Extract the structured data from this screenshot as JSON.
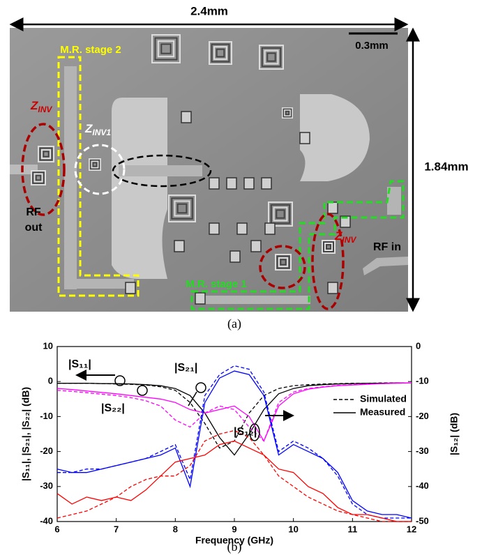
{
  "figure_a": {
    "width_label": "2.4mm",
    "height_label": "1.84mm",
    "scale_label": "0.3mm",
    "stage2": "M.R. stage 2",
    "stage1": "M.R. stage 1",
    "zinv_left": {
      "main": "Z",
      "sub": "INV"
    },
    "zinv1": {
      "main": "Z",
      "sub": "INV1"
    },
    "zinv_right": {
      "main": "Z",
      "sub": "INV"
    },
    "rf_out": [
      "RF",
      "out"
    ],
    "rf_in": "RF in",
    "caption": "(a)"
  },
  "chart_data": {
    "type": "line",
    "ylabel": "|S₁₁|, |S₂₁|, |S₂₂| (dB)",
    "y2label": "|S₁₂| (dB)",
    "xlabel": "Frequency (GHz)",
    "x": [
      6,
      6.25,
      6.5,
      6.75,
      7,
      7.25,
      7.5,
      7.75,
      8,
      8.25,
      8.5,
      8.75,
      9,
      9.25,
      9.5,
      9.75,
      10,
      10.25,
      10.5,
      10.75,
      11,
      11.25,
      11.5,
      11.75,
      12
    ],
    "series": [
      {
        "color": "#000000",
        "dash": false,
        "values": [
          -0.5,
          -0.5,
          -0.5,
          -0.6,
          -0.6,
          -0.7,
          -0.9,
          -1.2,
          -2,
          -4,
          -9,
          -16,
          -21,
          -15,
          -8,
          -3.5,
          -2,
          -1.2,
          -0.9,
          -0.7,
          -0.6,
          -0.5,
          -0.5,
          -0.4,
          -0.4
        ]
      },
      {
        "color": "#000000",
        "dash": true,
        "values": [
          -0.5,
          -0.5,
          -0.5,
          -0.6,
          -0.7,
          -0.8,
          -1,
          -1.5,
          -2.5,
          -6,
          -12,
          -19,
          -17,
          -9,
          -4,
          -2,
          -1.2,
          -0.9,
          -0.7,
          -0.6,
          -0.5,
          -0.5,
          -0.4,
          -0.4,
          -0.4
        ]
      },
      {
        "color": "#ff00ff",
        "dash": false,
        "values": [
          -2,
          -2.3,
          -2.7,
          -3.1,
          -3.5,
          -4,
          -4.5,
          -5,
          -6,
          -8,
          -9,
          -8,
          -7,
          -10,
          -17,
          -7,
          -3.5,
          -2.2,
          -1.6,
          -1.2,
          -1,
          -0.8,
          -0.6,
          -0.5,
          -0.4
        ]
      },
      {
        "color": "#ff00ff",
        "dash": true,
        "values": [
          -2.5,
          -2.8,
          -3.2,
          -3.6,
          -4,
          -4.6,
          -5.5,
          -7,
          -11,
          -13,
          -9,
          -7,
          -8,
          -13,
          -17,
          -6,
          -3,
          -2,
          -1.5,
          -1.1,
          -0.9,
          -0.7,
          -0.6,
          -0.5,
          -0.4
        ]
      },
      {
        "color": "#0000ff",
        "dash": false,
        "values": [
          -25,
          -26,
          -26,
          -25,
          -24,
          -23,
          -22,
          -21,
          -19,
          -30,
          -6,
          1,
          3,
          2,
          -4,
          -21,
          -18,
          -20,
          -22,
          -26,
          -34,
          -37,
          -38,
          -38,
          -39
        ]
      },
      {
        "color": "#0000ff",
        "dash": true,
        "values": [
          -26,
          -26,
          -25,
          -25,
          -24,
          -23,
          -22,
          -20,
          -18,
          -28,
          -4,
          2,
          4.5,
          3.5,
          -3,
          -20,
          -17,
          -19,
          -22,
          -27,
          -35,
          -38,
          -39,
          -39,
          -39
        ]
      },
      {
        "color": "#ff0000",
        "dash": false,
        "axis": "y2",
        "values": [
          -42,
          -45,
          -43,
          -44,
          -43,
          -44,
          -41,
          -37,
          -33,
          -32,
          -31,
          -28,
          -27,
          -29,
          -31,
          -35,
          -36,
          -40,
          -42,
          -46,
          -48,
          -48,
          -49,
          -50,
          -50
        ]
      },
      {
        "color": "#ff0000",
        "dash": true,
        "axis": "y2",
        "values": [
          -49,
          -48,
          -47,
          -45,
          -43,
          -40,
          -38,
          -37,
          -37,
          -34,
          -27,
          -25,
          -24,
          -26,
          -31,
          -37,
          -40,
          -43,
          -45,
          -47,
          -48,
          -49,
          -50,
          -50,
          -50
        ]
      }
    ],
    "legend": [
      {
        "label": "Simulated",
        "dash": true
      },
      {
        "label": "Measured",
        "dash": false
      }
    ],
    "annotations": [
      "|S₁₁|",
      "|S₂₂|",
      "|S₂₁|",
      "|S₁₂|"
    ],
    "xlim": [
      6,
      12
    ],
    "xticks": [
      6,
      7,
      8,
      9,
      10,
      11,
      12
    ],
    "ylim": [
      -40,
      10
    ],
    "yticks": [
      -40,
      -30,
      -20,
      -10,
      0,
      10
    ],
    "y2lim": [
      -50,
      0
    ],
    "y2ticks": [
      -50,
      -40,
      -30,
      -20,
      -10,
      0
    ],
    "grid": false,
    "caption": "(b)"
  }
}
